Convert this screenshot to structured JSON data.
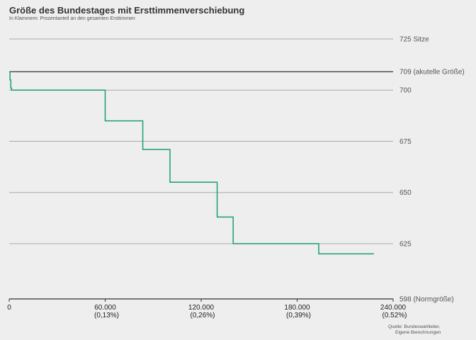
{
  "chart_data": {
    "type": "line",
    "title": "Größe des Bundestages mit Ersttimmenverschiebung",
    "subtitle": "In Klammern: Prozentanteil an den gesamten Ersttimmen",
    "source": [
      "Quelle: Bundeswahlleiter,",
      "Eigene Berechnungen"
    ],
    "xlim": [
      0,
      240000
    ],
    "ylim": [
      598,
      735
    ],
    "y_ticks": [
      {
        "value": 725,
        "label": "725 Sitze"
      },
      {
        "value": 709,
        "label": "709 (akutelle Größe)",
        "reference": true
      },
      {
        "value": 700,
        "label": "700"
      },
      {
        "value": 675,
        "label": "675"
      },
      {
        "value": 650,
        "label": "650"
      },
      {
        "value": 625,
        "label": "625"
      },
      {
        "value": 598,
        "label": "598 (Normgröße)",
        "axis": true
      }
    ],
    "x_ticks": [
      {
        "value": 0,
        "label": "0",
        "sub": ""
      },
      {
        "value": 60000,
        "label": "60.000",
        "sub": "(0,13%)"
      },
      {
        "value": 120000,
        "label": "120.000",
        "sub": "(0,26%)"
      },
      {
        "value": 180000,
        "label": "180.000",
        "sub": "(0,39%)"
      },
      {
        "value": 240000,
        "label": "240.000",
        "sub": "(0.52%)"
      }
    ],
    "step": {
      "x": [
        0,
        500,
        1000,
        1500,
        60000,
        83500,
        100500,
        130000,
        140000,
        193500,
        228000
      ],
      "y": [
        709,
        705,
        701,
        700,
        685,
        671,
        655,
        638,
        625,
        620,
        620
      ]
    },
    "colors": {
      "line": "#1a9e77",
      "reference": "#333333",
      "grid": "#aaaaaa",
      "axis": "#333333"
    }
  }
}
